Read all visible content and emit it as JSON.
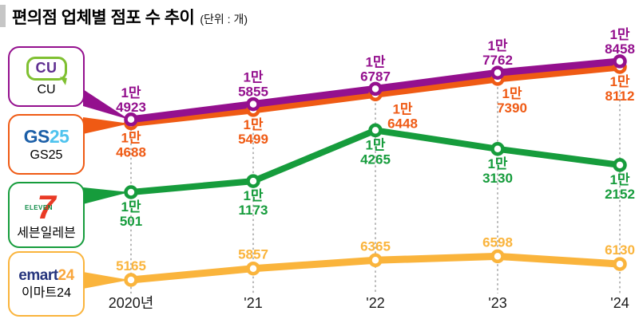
{
  "title": {
    "text": "편의점 업체별 점포 수 추이",
    "unit": "(단위 : 개)"
  },
  "legend": [
    {
      "label": "CU",
      "logo_text": "CU",
      "color": "#94108E",
      "logo_colors": {
        "bubble": "#7FC031",
        "text": "#5F2E91"
      }
    },
    {
      "label": "GS25",
      "logo_part1": "GS",
      "logo_part2": "25",
      "color": "#EF5A14",
      "logo_colors": {
        "part1": "#1C5FA8",
        "part2": "#4EC3EE"
      }
    },
    {
      "label": "세븐일레븐",
      "logo_part1": "7",
      "logo_part2": "ELEVEN",
      "color": "#169C3C",
      "logo_colors": {
        "part1": "#E93A25",
        "part2": "#0B8A44"
      }
    },
    {
      "label": "이마트24",
      "logo_part1": "emart",
      "logo_part2": "24",
      "color": "#FAB43C",
      "logo_colors": {
        "part1": "#26357D",
        "part2": "#F9A63C"
      }
    }
  ],
  "chart_data": {
    "type": "line",
    "title": "편의점 업체별 점포 수 추이",
    "unit_label": "(단위 : 개)",
    "x_categories": [
      "2020년",
      "'21",
      "'22",
      "'23",
      "'24"
    ],
    "y_unit_prefix_10k": "1만",
    "series": [
      {
        "name": "CU",
        "color": "#94108E",
        "values": [
          14923,
          15855,
          16787,
          17762,
          18458
        ],
        "label_side": "above"
      },
      {
        "name": "GS25",
        "color": "#EF5A14",
        "values": [
          14688,
          15499,
          16448,
          17390,
          18112
        ],
        "label_side": "below"
      },
      {
        "name": "세븐일레븐",
        "color": "#169C3C",
        "values": [
          10501,
          11173,
          14265,
          13130,
          12152
        ],
        "label_side": "below"
      },
      {
        "name": "이마트24",
        "color": "#FAB43C",
        "values": [
          5165,
          5857,
          6365,
          6598,
          6130
        ],
        "label_side": "above"
      }
    ],
    "grid": "dotted-vertical-per-category",
    "legend_position": "left",
    "markers": "open-circle"
  }
}
